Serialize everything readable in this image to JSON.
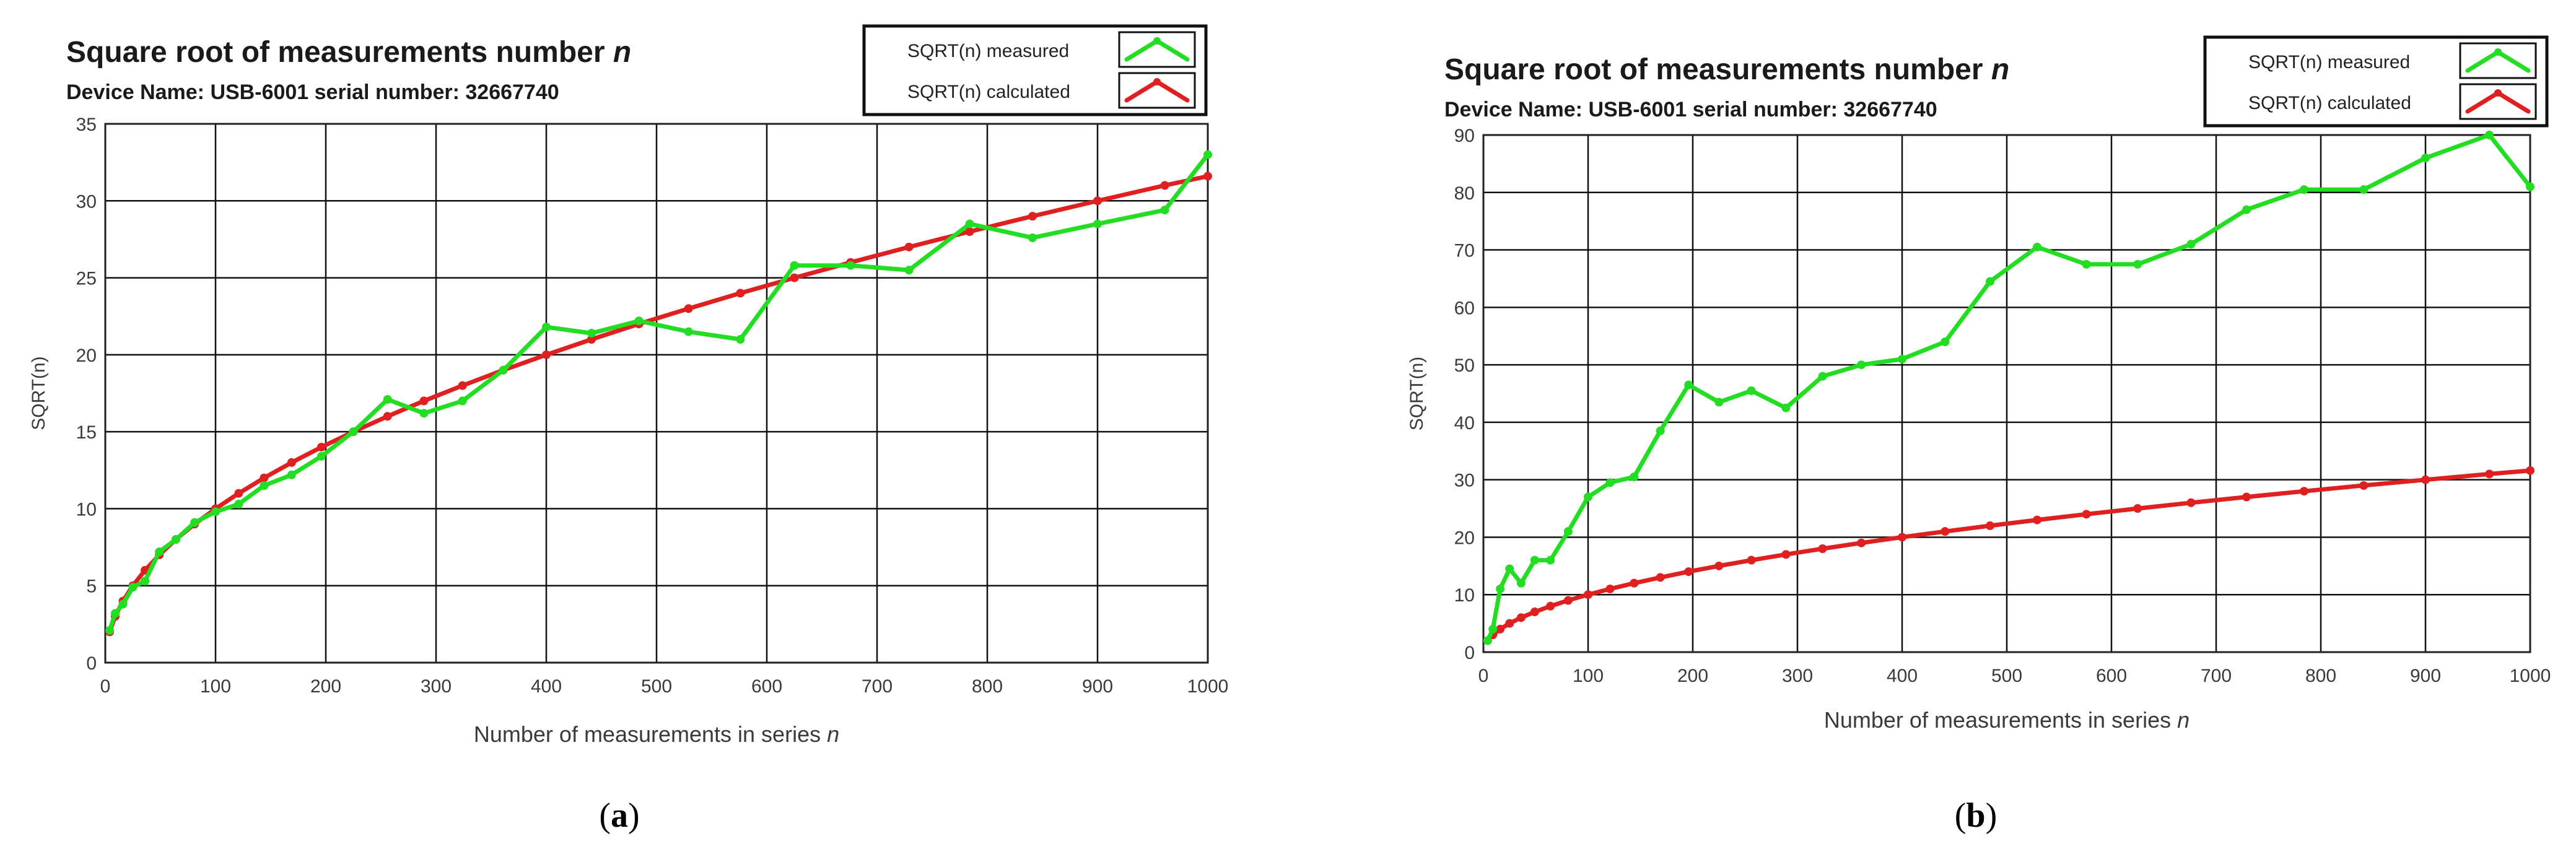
{
  "chart_data": [
    {
      "type": "line",
      "title": "Square root of measurements number n",
      "subtitle": "Device Name: USB-6001 serial number: 32667740",
      "xlabel": "Number of measurements in series n",
      "ylabel": "SQRT(n)",
      "caption": "(a)",
      "caption_letter": "a",
      "xlim": [
        0,
        1000
      ],
      "ylim": [
        0,
        35
      ],
      "xticks": [
        0,
        100,
        200,
        300,
        400,
        500,
        600,
        700,
        800,
        900,
        1000
      ],
      "yticks": [
        0,
        5,
        10,
        15,
        20,
        25,
        30,
        35
      ],
      "grid": true,
      "legend_position": "top-right",
      "series": [
        {
          "name": "SQRT(n) measured",
          "color": "#22dd22",
          "x": [
            4,
            9,
            16,
            25,
            36,
            49,
            64,
            81,
            100,
            121,
            144,
            169,
            196,
            225,
            256,
            289,
            324,
            361,
            400,
            441,
            484,
            529,
            576,
            625,
            676,
            729,
            784,
            841,
            900,
            961,
            1000
          ],
          "y": [
            2.1,
            3.2,
            3.8,
            4.9,
            5.3,
            7.2,
            8.0,
            9.1,
            9.8,
            10.3,
            11.5,
            12.2,
            13.4,
            15.0,
            17.1,
            16.2,
            17.0,
            19.0,
            21.8,
            21.4,
            22.2,
            21.5,
            21.0,
            25.8,
            25.8,
            25.5,
            28.5,
            27.6,
            28.5,
            29.4,
            33.0
          ]
        },
        {
          "name": "SQRT(n) calculated",
          "color": "#e02020",
          "x": [
            4,
            9,
            16,
            25,
            36,
            49,
            64,
            81,
            100,
            121,
            144,
            169,
            196,
            225,
            256,
            289,
            324,
            361,
            400,
            441,
            484,
            529,
            576,
            625,
            676,
            729,
            784,
            841,
            900,
            961,
            1000
          ],
          "y": [
            2,
            3,
            4,
            5,
            6,
            7,
            8,
            9,
            10,
            11,
            12,
            13,
            14,
            15,
            16,
            17,
            18,
            19,
            20,
            21,
            22,
            23,
            24,
            25,
            26,
            27,
            28,
            29,
            30,
            31,
            31.6
          ]
        }
      ]
    },
    {
      "type": "line",
      "title": "Square root of measurements number n",
      "subtitle": "Device Name: USB-6001 serial number: 32667740",
      "xlabel": "Number of measurements in series n",
      "ylabel": "SQRT(n)",
      "caption": "(b)",
      "caption_letter": "b",
      "xlim": [
        0,
        1000
      ],
      "ylim": [
        0,
        90
      ],
      "xticks": [
        0,
        100,
        200,
        300,
        400,
        500,
        600,
        700,
        800,
        900,
        1000
      ],
      "yticks": [
        0,
        10,
        20,
        30,
        40,
        50,
        60,
        70,
        80,
        90
      ],
      "grid": true,
      "legend_position": "top-right",
      "series": [
        {
          "name": "SQRT(n) measured",
          "color": "#22dd22",
          "x": [
            4,
            9,
            16,
            25,
            36,
            49,
            64,
            81,
            100,
            121,
            144,
            169,
            196,
            225,
            256,
            289,
            324,
            361,
            400,
            441,
            484,
            529,
            576,
            625,
            676,
            729,
            784,
            841,
            900,
            961,
            1000
          ],
          "y": [
            2,
            4,
            11,
            14.5,
            12,
            16,
            16,
            21,
            27,
            29.5,
            30.5,
            38.5,
            46.5,
            43.5,
            45.5,
            42.5,
            48,
            50,
            51,
            54,
            64.5,
            70.5,
            67.5,
            67.5,
            71,
            77,
            80.5,
            80.5,
            86,
            90,
            81
          ]
        },
        {
          "name": "SQRT(n) calculated",
          "color": "#e02020",
          "x": [
            4,
            9,
            16,
            25,
            36,
            49,
            64,
            81,
            100,
            121,
            144,
            169,
            196,
            225,
            256,
            289,
            324,
            361,
            400,
            441,
            484,
            529,
            576,
            625,
            676,
            729,
            784,
            841,
            900,
            961,
            1000
          ],
          "y": [
            2,
            3,
            4,
            5,
            6,
            7,
            8,
            9,
            10,
            11,
            12,
            13,
            14,
            15,
            16,
            17,
            18,
            19,
            20,
            21,
            22,
            23,
            24,
            25,
            26,
            27,
            28,
            29,
            30,
            31,
            31.6
          ]
        }
      ]
    }
  ]
}
